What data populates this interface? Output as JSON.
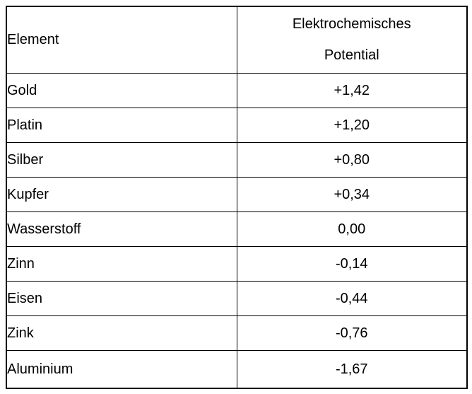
{
  "table": {
    "header": {
      "col1": "Element",
      "col2_line1": "Elektrochemisches",
      "col2_line2": "Potential"
    },
    "rows": [
      {
        "element": "Gold",
        "potential": "+1,42"
      },
      {
        "element": "Platin",
        "potential": "+1,20"
      },
      {
        "element": "Silber",
        "potential": "+0,80"
      },
      {
        "element": "Kupfer",
        "potential": "+0,34"
      },
      {
        "element": "Wasserstoff",
        "potential": "0,00"
      },
      {
        "element": "Zinn",
        "potential": "-0,14"
      },
      {
        "element": "Eisen",
        "potential": "-0,44"
      },
      {
        "element": "Zink",
        "potential": "-0,76"
      },
      {
        "element": "Aluminium",
        "potential": "-1,67"
      }
    ]
  },
  "colors": {
    "border": "#000000",
    "background": "#ffffff",
    "text": "#000000"
  }
}
